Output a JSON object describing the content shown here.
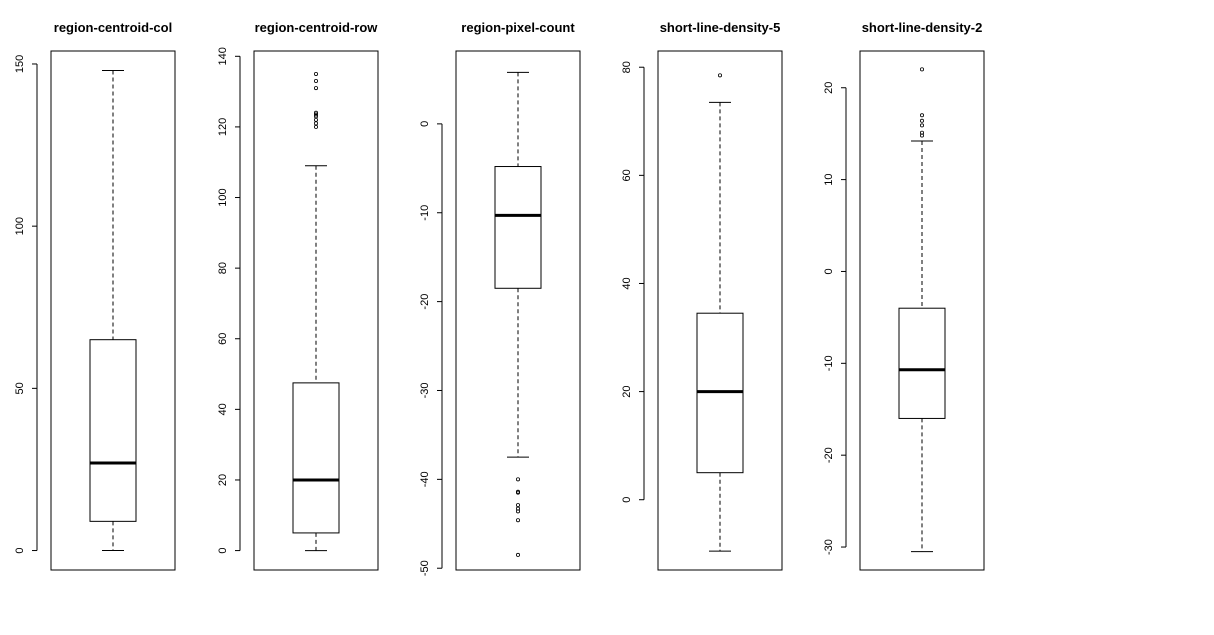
{
  "chart_data": [
    {
      "type": "boxplot",
      "title": "region-centroid-col",
      "ylim": [
        -6,
        154
      ],
      "ticks": [
        0,
        50,
        100,
        150
      ],
      "stats": {
        "lower_whisker": 0,
        "q1": 9,
        "median": 27,
        "q3": 65,
        "upper_whisker": 148
      },
      "outliers": []
    },
    {
      "type": "boxplot",
      "title": "region-centroid-row",
      "ylim": [
        -5.5,
        141.5
      ],
      "ticks": [
        0,
        20,
        40,
        60,
        80,
        100,
        120,
        140
      ],
      "stats": {
        "lower_whisker": 0,
        "q1": 5,
        "median": 20,
        "q3": 47.5,
        "upper_whisker": 109
      },
      "outliers": [
        120,
        121,
        122,
        123,
        123.5,
        124,
        131,
        133,
        135
      ]
    },
    {
      "type": "boxplot",
      "title": "region-pixel-count",
      "ylim": [
        -50.2,
        8.2
      ],
      "ticks": [
        0,
        -10,
        -20,
        -30,
        -40,
        -50
      ],
      "stats": {
        "lower_whisker": -37.5,
        "q1": -18.5,
        "median": -10.3,
        "q3": -4.8,
        "upper_whisker": 5.8
      },
      "outliers": [
        -40,
        -41.4,
        -41.5,
        -42.9,
        -43.3,
        -43.6,
        -44.6,
        -48.5
      ]
    },
    {
      "type": "boxplot",
      "title": "short-line-density-5",
      "ylim": [
        -13,
        83
      ],
      "ticks": [
        0,
        20,
        40,
        60,
        80
      ],
      "stats": {
        "lower_whisker": -9.5,
        "q1": 5,
        "median": 20,
        "q3": 34.5,
        "upper_whisker": 73.5
      },
      "outliers": [
        78.5
      ]
    },
    {
      "type": "boxplot",
      "title": "short-line-density-2",
      "ylim": [
        -32.5,
        24
      ],
      "ticks": [
        20,
        10,
        0,
        -10,
        -20,
        -30
      ],
      "stats": {
        "lower_whisker": -30.5,
        "q1": -16,
        "median": -10.7,
        "q3": -4,
        "upper_whisker": 14.2
      },
      "outliers": [
        14.8,
        15.1,
        15.9,
        16.4,
        17,
        22
      ]
    }
  ]
}
